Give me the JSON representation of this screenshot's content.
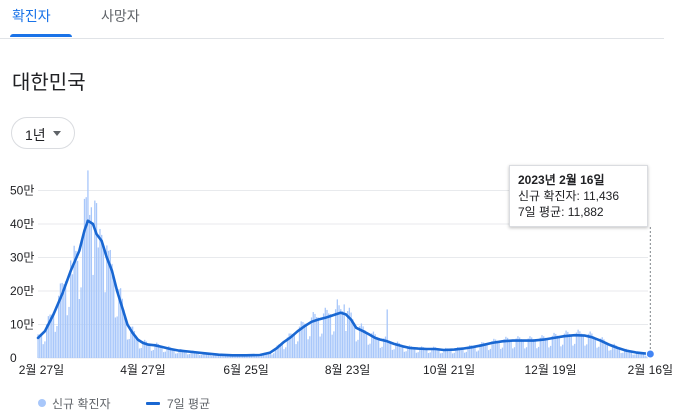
{
  "tabs": [
    {
      "label": "확진자",
      "active": true
    },
    {
      "label": "사망자",
      "active": false
    }
  ],
  "region_title": "대한민국",
  "range_selector": {
    "label": "1년"
  },
  "tooltip": {
    "date": "2023년 2월 16일",
    "line1": "신규 확진자: 11,436",
    "line2": "7일 평균: 11,882"
  },
  "legend": {
    "bars_label": "신규 확진자",
    "line_label": "7일 평균"
  },
  "colors": {
    "bar": "#a8c7fa",
    "line": "#1967d2",
    "active_tab": "#1a73e8"
  },
  "chart_data": {
    "type": "bar",
    "title": "",
    "xlabel": "",
    "ylabel": "",
    "ylim": [
      0,
      600000
    ],
    "y_ticks": [
      {
        "value": 0,
        "label": "0"
      },
      {
        "value": 100000,
        "label": "10만"
      },
      {
        "value": 200000,
        "label": "20만"
      },
      {
        "value": 300000,
        "label": "30만"
      },
      {
        "value": 400000,
        "label": "40만"
      },
      {
        "value": 500000,
        "label": "50만"
      }
    ],
    "x_ticks": [
      {
        "day": 0,
        "label": "2월 27일"
      },
      {
        "day": 59,
        "label": "4월 27일"
      },
      {
        "day": 119,
        "label": "6월 25일"
      },
      {
        "day": 178,
        "label": "8월 23일"
      },
      {
        "day": 237,
        "label": "10월 21일"
      },
      {
        "day": 296,
        "label": "12월 19일"
      },
      {
        "day": 354,
        "label": "2월 16일"
      }
    ],
    "series": [
      {
        "name": "7일 평균",
        "kind": "line",
        "points": [
          [
            -2,
            60000
          ],
          [
            2,
            80000
          ],
          [
            7,
            130000
          ],
          [
            12,
            190000
          ],
          [
            17,
            260000
          ],
          [
            22,
            320000
          ],
          [
            25,
            380000
          ],
          [
            27,
            410000
          ],
          [
            30,
            400000
          ],
          [
            32,
            370000
          ],
          [
            35,
            350000
          ],
          [
            38,
            300000
          ],
          [
            41,
            260000
          ],
          [
            44,
            200000
          ],
          [
            47,
            150000
          ],
          [
            50,
            100000
          ],
          [
            53,
            75000
          ],
          [
            56,
            55000
          ],
          [
            59,
            45000
          ],
          [
            62,
            40000
          ],
          [
            66,
            38000
          ],
          [
            70,
            33000
          ],
          [
            75,
            27000
          ],
          [
            80,
            22000
          ],
          [
            88,
            18000
          ],
          [
            95,
            14000
          ],
          [
            103,
            10000
          ],
          [
            111,
            8000
          ],
          [
            119,
            8000
          ],
          [
            127,
            9000
          ],
          [
            133,
            16000
          ],
          [
            137,
            30000
          ],
          [
            141,
            48000
          ],
          [
            145,
            62000
          ],
          [
            149,
            80000
          ],
          [
            153,
            95000
          ],
          [
            157,
            108000
          ],
          [
            161,
            115000
          ],
          [
            165,
            120000
          ],
          [
            168,
            125000
          ],
          [
            171,
            130000
          ],
          [
            174,
            135000
          ],
          [
            177,
            130000
          ],
          [
            180,
            115000
          ],
          [
            183,
            90000
          ],
          [
            187,
            80000
          ],
          [
            190,
            72000
          ],
          [
            194,
            60000
          ],
          [
            197,
            55000
          ],
          [
            201,
            50000
          ],
          [
            205,
            42000
          ],
          [
            210,
            35000
          ],
          [
            214,
            30000
          ],
          [
            219,
            28000
          ],
          [
            224,
            27000
          ],
          [
            229,
            27000
          ],
          [
            234,
            24000
          ],
          [
            240,
            25000
          ],
          [
            245,
            28000
          ],
          [
            250,
            32000
          ],
          [
            256,
            38000
          ],
          [
            262,
            45000
          ],
          [
            268,
            50000
          ],
          [
            274,
            52000
          ],
          [
            280,
            52000
          ],
          [
            286,
            52000
          ],
          [
            292,
            55000
          ],
          [
            298,
            60000
          ],
          [
            304,
            65000
          ],
          [
            310,
            68000
          ],
          [
            316,
            67000
          ],
          [
            320,
            62000
          ],
          [
            325,
            52000
          ],
          [
            330,
            40000
          ],
          [
            335,
            30000
          ],
          [
            340,
            22000
          ],
          [
            346,
            16000
          ],
          [
            350,
            14000
          ],
          [
            354,
            11882
          ]
        ]
      },
      {
        "name": "신규 확진자",
        "kind": "bar",
        "highlights": [
          [
            18,
            250000
          ],
          [
            21,
            290000
          ],
          [
            24,
            360000
          ],
          [
            26,
            480000
          ],
          [
            27,
            560000
          ],
          [
            29,
            450000
          ],
          [
            31,
            470000
          ],
          [
            33,
            330000
          ],
          [
            36,
            330000
          ],
          [
            39,
            320000
          ],
          [
            42,
            240000
          ],
          [
            172,
            175000
          ],
          [
            176,
            160000
          ],
          [
            201,
            145000
          ],
          [
            354,
            11436
          ]
        ]
      }
    ]
  }
}
